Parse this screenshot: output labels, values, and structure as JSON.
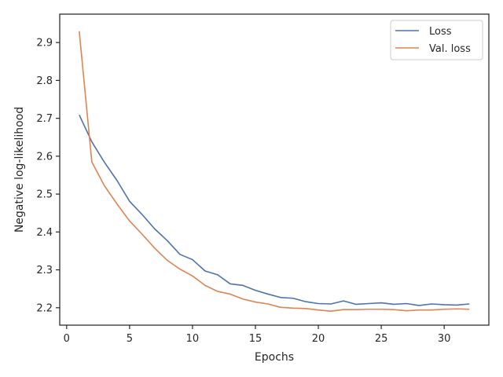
{
  "chart_data": {
    "type": "line",
    "title": "",
    "xlabel": "Epochs",
    "ylabel": "Negative log-likelihood",
    "xlim": [
      -0.55,
      33.55
    ],
    "ylim": [
      2.154,
      2.975
    ],
    "xticks": [
      0,
      5,
      10,
      15,
      20,
      25,
      30
    ],
    "yticks": [
      2.2,
      2.3,
      2.4,
      2.5,
      2.6,
      2.7,
      2.8,
      2.9
    ],
    "grid": false,
    "legend_position": "top-right",
    "x": [
      1,
      2,
      3,
      4,
      5,
      6,
      7,
      8,
      9,
      10,
      11,
      12,
      13,
      14,
      15,
      16,
      17,
      18,
      19,
      20,
      21,
      22,
      23,
      24,
      25,
      26,
      27,
      28,
      29,
      30,
      31,
      32
    ],
    "series": [
      {
        "name": "Loss",
        "color": "#4c72b0",
        "values": [
          2.709,
          2.638,
          2.584,
          2.536,
          2.481,
          2.446,
          2.408,
          2.377,
          2.341,
          2.327,
          2.297,
          2.287,
          2.263,
          2.259,
          2.246,
          2.236,
          2.227,
          2.225,
          2.216,
          2.211,
          2.21,
          2.218,
          2.209,
          2.211,
          2.213,
          2.209,
          2.211,
          2.206,
          2.21,
          2.208,
          2.207,
          2.21
        ]
      },
      {
        "name": "Val. loss",
        "color": "#dd8452",
        "values": [
          2.93,
          2.585,
          2.522,
          2.474,
          2.429,
          2.394,
          2.357,
          2.325,
          2.302,
          2.284,
          2.259,
          2.243,
          2.236,
          2.223,
          2.215,
          2.21,
          2.201,
          2.199,
          2.198,
          2.194,
          2.191,
          2.195,
          2.195,
          2.196,
          2.196,
          2.195,
          2.192,
          2.194,
          2.194,
          2.196,
          2.197,
          2.196
        ]
      }
    ]
  }
}
